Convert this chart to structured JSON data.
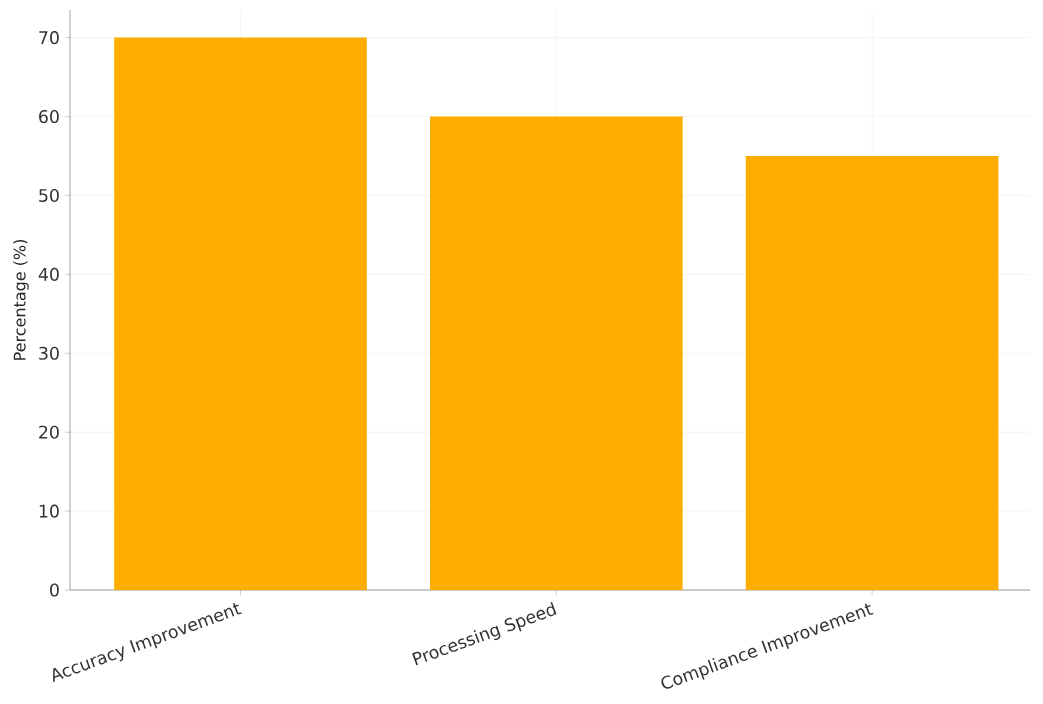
{
  "chart_data": {
    "type": "bar",
    "ylabel": "Percentage (%)",
    "categories": [
      "Accuracy Improvement",
      "Processing Speed",
      "Compliance Improvement"
    ],
    "values": [
      70,
      60,
      55
    ],
    "color": "#fcad00",
    "ylim": [
      0,
      73.5
    ],
    "yticks": [
      0,
      10,
      20,
      30,
      40,
      50,
      60,
      70
    ],
    "grid": true
  }
}
